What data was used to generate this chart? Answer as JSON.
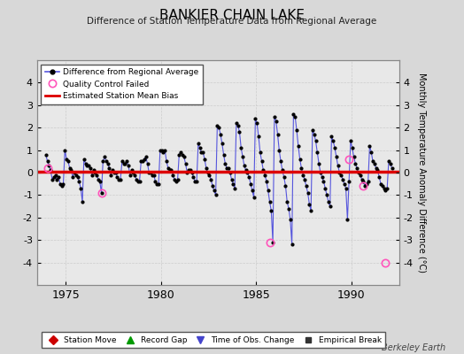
{
  "title": "BANKIER CHAIN LAKE",
  "subtitle": "Difference of Station Temperature Data from Regional Average",
  "ylabel": "Monthly Temperature Anomaly Difference (°C)",
  "xlabel_years": [
    1975,
    1980,
    1985,
    1990
  ],
  "ylim": [
    -5,
    5
  ],
  "xlim_start": 1973.5,
  "xlim_end": 1992.5,
  "bias_line_y": 0.05,
  "background_color": "#d8d8d8",
  "plot_bg_color": "#e8e8e8",
  "line_color": "#5555dd",
  "bias_color": "#dd0000",
  "qc_color": "#ff55bb",
  "watermark": "Berkeley Earth",
  "series": [
    [
      1973.958,
      0.8
    ],
    [
      1974.042,
      0.5
    ],
    [
      1974.125,
      0.3
    ],
    [
      1974.208,
      0.1
    ],
    [
      1974.292,
      -0.3
    ],
    [
      1974.375,
      -0.2
    ],
    [
      1974.458,
      -0.1
    ],
    [
      1974.542,
      -0.3
    ],
    [
      1974.625,
      -0.2
    ],
    [
      1974.708,
      -0.5
    ],
    [
      1974.792,
      -0.6
    ],
    [
      1974.875,
      -0.5
    ],
    [
      1974.958,
      1.0
    ],
    [
      1975.042,
      0.6
    ],
    [
      1975.125,
      0.5
    ],
    [
      1975.208,
      0.2
    ],
    [
      1975.292,
      0.1
    ],
    [
      1975.375,
      -0.2
    ],
    [
      1975.458,
      0.0
    ],
    [
      1975.542,
      -0.1
    ],
    [
      1975.625,
      -0.2
    ],
    [
      1975.708,
      -0.4
    ],
    [
      1975.792,
      -0.7
    ],
    [
      1975.875,
      -1.3
    ],
    [
      1975.958,
      0.6
    ],
    [
      1976.042,
      0.4
    ],
    [
      1976.125,
      0.3
    ],
    [
      1976.208,
      0.3
    ],
    [
      1976.292,
      0.2
    ],
    [
      1976.375,
      -0.1
    ],
    [
      1976.458,
      0.1
    ],
    [
      1976.542,
      0.0
    ],
    [
      1976.625,
      -0.1
    ],
    [
      1976.708,
      -0.3
    ],
    [
      1976.792,
      -0.4
    ],
    [
      1976.875,
      -0.9
    ],
    [
      1976.958,
      0.5
    ],
    [
      1977.042,
      0.7
    ],
    [
      1977.125,
      0.5
    ],
    [
      1977.208,
      0.4
    ],
    [
      1977.292,
      0.2
    ],
    [
      1977.375,
      -0.1
    ],
    [
      1977.458,
      0.1
    ],
    [
      1977.542,
      0.0
    ],
    [
      1977.625,
      0.0
    ],
    [
      1977.708,
      -0.2
    ],
    [
      1977.792,
      -0.3
    ],
    [
      1977.875,
      -0.3
    ],
    [
      1977.958,
      0.5
    ],
    [
      1978.042,
      0.4
    ],
    [
      1978.125,
      0.4
    ],
    [
      1978.208,
      0.5
    ],
    [
      1978.292,
      0.3
    ],
    [
      1978.375,
      -0.1
    ],
    [
      1978.458,
      0.1
    ],
    [
      1978.542,
      0.0
    ],
    [
      1978.625,
      -0.1
    ],
    [
      1978.708,
      -0.3
    ],
    [
      1978.792,
      -0.4
    ],
    [
      1978.875,
      -0.4
    ],
    [
      1978.958,
      0.5
    ],
    [
      1979.042,
      0.5
    ],
    [
      1979.125,
      0.6
    ],
    [
      1979.208,
      0.7
    ],
    [
      1979.292,
      0.4
    ],
    [
      1979.375,
      0.0
    ],
    [
      1979.458,
      0.0
    ],
    [
      1979.542,
      -0.1
    ],
    [
      1979.625,
      -0.1
    ],
    [
      1979.708,
      -0.4
    ],
    [
      1979.792,
      -0.5
    ],
    [
      1979.875,
      -0.5
    ],
    [
      1979.958,
      1.0
    ],
    [
      1980.042,
      1.0
    ],
    [
      1980.125,
      0.9
    ],
    [
      1980.208,
      1.0
    ],
    [
      1980.292,
      0.5
    ],
    [
      1980.375,
      0.2
    ],
    [
      1980.458,
      0.1
    ],
    [
      1980.542,
      0.1
    ],
    [
      1980.625,
      -0.1
    ],
    [
      1980.708,
      -0.3
    ],
    [
      1980.792,
      -0.4
    ],
    [
      1980.875,
      -0.3
    ],
    [
      1980.958,
      0.8
    ],
    [
      1981.042,
      0.9
    ],
    [
      1981.125,
      0.8
    ],
    [
      1981.208,
      0.7
    ],
    [
      1981.292,
      0.4
    ],
    [
      1981.375,
      0.0
    ],
    [
      1981.458,
      0.1
    ],
    [
      1981.542,
      0.1
    ],
    [
      1981.625,
      0.0
    ],
    [
      1981.708,
      -0.2
    ],
    [
      1981.792,
      -0.4
    ],
    [
      1981.875,
      -0.4
    ],
    [
      1981.958,
      1.3
    ],
    [
      1982.042,
      1.1
    ],
    [
      1982.125,
      0.9
    ],
    [
      1982.208,
      0.9
    ],
    [
      1982.292,
      0.6
    ],
    [
      1982.375,
      0.2
    ],
    [
      1982.458,
      0.0
    ],
    [
      1982.542,
      -0.1
    ],
    [
      1982.625,
      -0.3
    ],
    [
      1982.708,
      -0.6
    ],
    [
      1982.792,
      -0.8
    ],
    [
      1982.875,
      -1.0
    ],
    [
      1982.958,
      2.1
    ],
    [
      1983.042,
      2.0
    ],
    [
      1983.125,
      1.7
    ],
    [
      1983.208,
      1.3
    ],
    [
      1983.292,
      0.8
    ],
    [
      1983.375,
      0.4
    ],
    [
      1983.458,
      0.2
    ],
    [
      1983.542,
      0.2
    ],
    [
      1983.625,
      0.0
    ],
    [
      1983.708,
      -0.3
    ],
    [
      1983.792,
      -0.5
    ],
    [
      1983.875,
      -0.7
    ],
    [
      1983.958,
      2.2
    ],
    [
      1984.042,
      2.1
    ],
    [
      1984.125,
      1.8
    ],
    [
      1984.208,
      1.1
    ],
    [
      1984.292,
      0.7
    ],
    [
      1984.375,
      0.3
    ],
    [
      1984.458,
      0.1
    ],
    [
      1984.542,
      0.0
    ],
    [
      1984.625,
      -0.2
    ],
    [
      1984.708,
      -0.5
    ],
    [
      1984.792,
      -0.8
    ],
    [
      1984.875,
      -1.1
    ],
    [
      1984.958,
      2.4
    ],
    [
      1985.042,
      2.2
    ],
    [
      1985.125,
      1.6
    ],
    [
      1985.208,
      0.9
    ],
    [
      1985.292,
      0.5
    ],
    [
      1985.375,
      0.1
    ],
    [
      1985.458,
      -0.1
    ],
    [
      1985.542,
      -0.4
    ],
    [
      1985.625,
      -0.8
    ],
    [
      1985.708,
      -1.3
    ],
    [
      1985.792,
      -1.7
    ],
    [
      1985.875,
      -3.1
    ],
    [
      1985.958,
      2.5
    ],
    [
      1986.042,
      2.3
    ],
    [
      1986.125,
      1.7
    ],
    [
      1986.208,
      1.0
    ],
    [
      1986.292,
      0.5
    ],
    [
      1986.375,
      0.1
    ],
    [
      1986.458,
      -0.2
    ],
    [
      1986.542,
      -0.6
    ],
    [
      1986.625,
      -1.3
    ],
    [
      1986.708,
      -1.6
    ],
    [
      1986.792,
      -2.1
    ],
    [
      1986.875,
      -3.2
    ],
    [
      1986.958,
      2.6
    ],
    [
      1987.042,
      2.5
    ],
    [
      1987.125,
      1.9
    ],
    [
      1987.208,
      1.2
    ],
    [
      1987.292,
      0.6
    ],
    [
      1987.375,
      0.2
    ],
    [
      1987.458,
      -0.1
    ],
    [
      1987.542,
      -0.3
    ],
    [
      1987.625,
      -0.6
    ],
    [
      1987.708,
      -0.9
    ],
    [
      1987.792,
      -1.4
    ],
    [
      1987.875,
      -1.7
    ],
    [
      1987.958,
      1.9
    ],
    [
      1988.042,
      1.7
    ],
    [
      1988.125,
      1.4
    ],
    [
      1988.208,
      0.9
    ],
    [
      1988.292,
      0.4
    ],
    [
      1988.375,
      0.0
    ],
    [
      1988.458,
      -0.2
    ],
    [
      1988.542,
      -0.4
    ],
    [
      1988.625,
      -0.7
    ],
    [
      1988.708,
      -1.0
    ],
    [
      1988.792,
      -1.3
    ],
    [
      1988.875,
      -1.5
    ],
    [
      1988.958,
      1.6
    ],
    [
      1989.042,
      1.4
    ],
    [
      1989.125,
      1.1
    ],
    [
      1989.208,
      0.7
    ],
    [
      1989.292,
      0.3
    ],
    [
      1989.375,
      0.0
    ],
    [
      1989.458,
      -0.1
    ],
    [
      1989.542,
      -0.3
    ],
    [
      1989.625,
      -0.5
    ],
    [
      1989.708,
      -0.7
    ],
    [
      1989.792,
      -2.1
    ],
    [
      1989.875,
      -0.4
    ],
    [
      1989.958,
      1.4
    ],
    [
      1990.042,
      1.1
    ],
    [
      1990.125,
      0.7
    ],
    [
      1990.208,
      0.4
    ],
    [
      1990.292,
      0.2
    ],
    [
      1990.375,
      0.0
    ],
    [
      1990.458,
      -0.1
    ],
    [
      1990.542,
      -0.3
    ],
    [
      1990.625,
      -0.4
    ],
    [
      1990.708,
      -0.6
    ],
    [
      1990.792,
      -0.5
    ],
    [
      1990.875,
      -0.4
    ],
    [
      1990.958,
      1.2
    ],
    [
      1991.042,
      0.9
    ],
    [
      1991.125,
      0.5
    ],
    [
      1991.208,
      0.4
    ],
    [
      1991.292,
      0.2
    ],
    [
      1991.375,
      0.1
    ],
    [
      1991.458,
      -0.2
    ],
    [
      1991.542,
      -0.5
    ],
    [
      1991.625,
      -0.6
    ],
    [
      1991.708,
      -0.7
    ],
    [
      1991.792,
      -0.8
    ],
    [
      1991.875,
      -0.7
    ],
    [
      1991.958,
      0.5
    ],
    [
      1992.042,
      0.4
    ],
    [
      1992.125,
      0.2
    ]
  ],
  "qc_failed": [
    [
      1974.042,
      0.2
    ],
    [
      1976.875,
      -0.9
    ],
    [
      1985.708,
      -3.1
    ],
    [
      1989.875,
      0.6
    ],
    [
      1990.625,
      -0.6
    ],
    [
      1991.792,
      -4.0
    ]
  ],
  "grid_color": "#cccccc",
  "legend1_items": [
    {
      "label": "Difference from Regional Average"
    },
    {
      "label": "Quality Control Failed"
    },
    {
      "label": "Estimated Station Mean Bias"
    }
  ],
  "legend2_items": [
    {
      "label": "Station Move",
      "color": "#cc0000",
      "marker": "D"
    },
    {
      "label": "Record Gap",
      "color": "#009900",
      "marker": "^"
    },
    {
      "label": "Time of Obs. Change",
      "color": "#4444cc",
      "marker": "v"
    },
    {
      "label": "Empirical Break",
      "color": "#333333",
      "marker": "s"
    }
  ]
}
